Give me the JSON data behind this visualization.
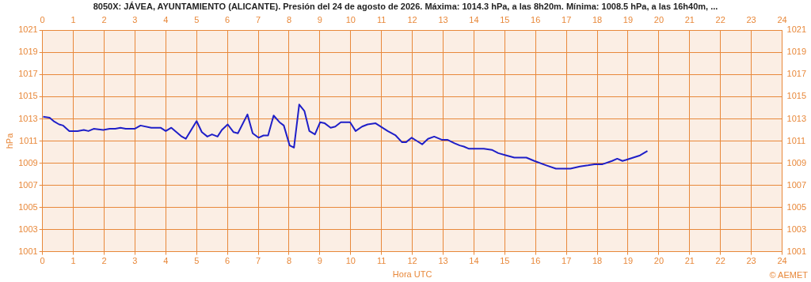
{
  "chart_data": {
    "type": "line",
    "title": "8050X: JÁVEA, AYUNTAMIENTO (ALICANTE). Presión del 24 de agosto de 2026. Máxima: 1014.3 hPa, a las 8h20m. Mínima: 1008.5 hPa, a las 16h40m, ...",
    "xlabel": "Hora UTC",
    "ylabel": "hPa",
    "annotations": [
      "© AEMET"
    ],
    "x": [
      0.02,
      0.23,
      0.36,
      0.54,
      0.67,
      0.87,
      1.14,
      1.34,
      1.49,
      1.66,
      1.97,
      2.18,
      2.36,
      2.53,
      2.7,
      2.99,
      3.18,
      3.53,
      3.83,
      4.0,
      4.18,
      4.52,
      4.65,
      5.0,
      5.17,
      5.35,
      5.5,
      5.68,
      5.82,
      6.01,
      6.2,
      6.34,
      6.65,
      6.82,
      7.01,
      7.17,
      7.32,
      7.5,
      7.69,
      7.83,
      8.02,
      8.16,
      8.33,
      8.5,
      8.66,
      8.84,
      9.01,
      9.16,
      9.35,
      9.5,
      9.68,
      9.98,
      10.16,
      10.37,
      10.55,
      10.81,
      10.98,
      11.2,
      11.46,
      11.66,
      11.8,
      11.98,
      12.15,
      12.32,
      12.51,
      12.71,
      12.97,
      13.15,
      13.37,
      13.54,
      13.67,
      13.84,
      14.32,
      14.58,
      14.79,
      15.05,
      15.31,
      15.7,
      15.96,
      16.35,
      16.66,
      17.13,
      17.44,
      17.7,
      17.91,
      18.17,
      18.48,
      18.65,
      18.82,
      18.95,
      19.17,
      19.39,
      19.63
    ],
    "series": [
      {
        "color": "#1f1fc8",
        "values": [
          1013.2,
          1013.1,
          1012.8,
          1012.5,
          1012.4,
          1011.9,
          1011.9,
          1012.0,
          1011.9,
          1012.1,
          1012.0,
          1012.1,
          1012.1,
          1012.2,
          1012.1,
          1012.1,
          1012.4,
          1012.2,
          1012.2,
          1011.9,
          1012.2,
          1011.4,
          1011.2,
          1012.8,
          1011.8,
          1011.4,
          1011.6,
          1011.4,
          1012.0,
          1012.5,
          1011.8,
          1011.7,
          1013.4,
          1011.7,
          1011.3,
          1011.5,
          1011.5,
          1013.3,
          1012.7,
          1012.4,
          1010.6,
          1010.4,
          1014.3,
          1013.7,
          1011.9,
          1011.6,
          1012.7,
          1012.6,
          1012.2,
          1012.3,
          1012.7,
          1012.7,
          1011.9,
          1012.3,
          1012.5,
          1012.6,
          1012.3,
          1011.9,
          1011.5,
          1010.9,
          1010.9,
          1011.3,
          1011.0,
          1010.7,
          1011.2,
          1011.4,
          1011.1,
          1011.1,
          1010.8,
          1010.6,
          1010.5,
          1010.3,
          1010.3,
          1010.2,
          1009.9,
          1009.7,
          1009.5,
          1009.5,
          1009.2,
          1008.8,
          1008.5,
          1008.5,
          1008.7,
          1008.8,
          1008.9,
          1008.9,
          1009.2,
          1009.4,
          1009.2,
          1009.3,
          1009.5,
          1009.7,
          1010.1
        ]
      }
    ],
    "xlim": [
      0,
      24
    ],
    "xticks": [
      0,
      1,
      2,
      3,
      4,
      5,
      6,
      7,
      8,
      9,
      10,
      11,
      12,
      13,
      14,
      15,
      16,
      17,
      18,
      19,
      20,
      21,
      22,
      23,
      24
    ],
    "x2lim": [
      0,
      24
    ],
    "x2ticks": [
      0,
      1,
      2,
      3,
      4,
      5,
      6,
      7,
      8,
      9,
      10,
      11,
      12,
      13,
      14,
      15,
      16,
      17,
      18,
      19,
      20,
      21,
      22,
      23,
      24
    ],
    "ylim": [
      1001,
      1021
    ],
    "yticks": [
      1001,
      1003,
      1005,
      1007,
      1009,
      1011,
      1013,
      1015,
      1017,
      1019,
      1021
    ],
    "y2lim": [
      1001,
      1021
    ],
    "y2ticks": [
      1001,
      1003,
      1005,
      1007,
      1009,
      1011,
      1013,
      1015,
      1017,
      1019,
      1021
    ],
    "grid": true,
    "legend": false,
    "marker": "none",
    "line_style": "solid"
  }
}
